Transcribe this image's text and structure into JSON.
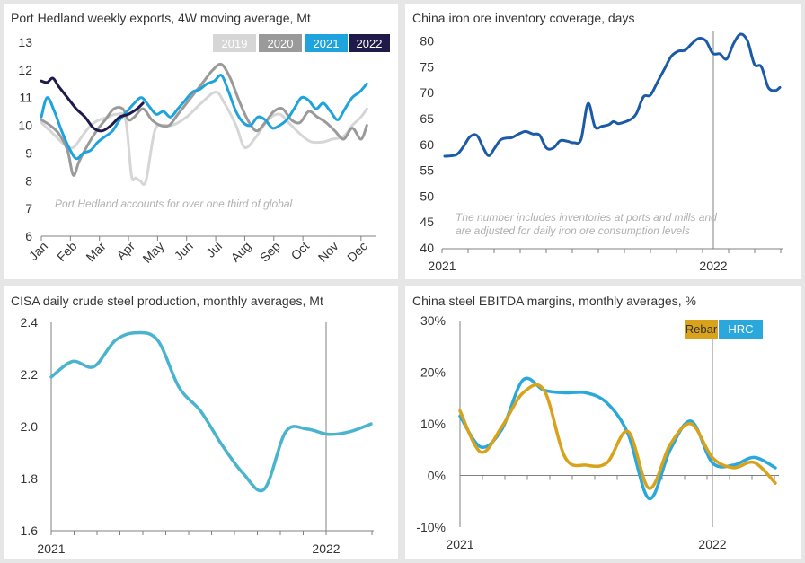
{
  "colors": {
    "y2019": "#d6d6d6",
    "y2020": "#9a9a9a",
    "y2021": "#1ea3dc",
    "y2022": "#1e1a4a",
    "inventory": "#1a5aa6",
    "steel": "#4ab4cf",
    "rebar": "#d9a21b",
    "hrc": "#2aa8dc",
    "axis": "#808080",
    "note": "#b0b0b0"
  },
  "chart_data": [
    {
      "type": "line",
      "title": "Port Hedland weekly exports, 4W moving average, Mt",
      "ylim": [
        6,
        13
      ],
      "yticks": [
        "13",
        "12",
        "11",
        "10",
        "9",
        "8",
        "7",
        "6"
      ],
      "xticklabels": [
        "Jan",
        "Feb",
        "Mar",
        "Apr",
        "May",
        "Jun",
        "Jul",
        "Aug",
        "Sep",
        "Oct",
        "Nov",
        "Dec"
      ],
      "legend": [
        "2019",
        "2020",
        "2021",
        "2022"
      ],
      "annotation": "Port Hedland accounts for over one third of global",
      "series": [
        {
          "name": "2019",
          "x": [
            0,
            0.2,
            0.5,
            0.8,
            1.1,
            1.4,
            1.7,
            2.0,
            2.3,
            2.6,
            2.9,
            3.1,
            3.25,
            3.4,
            3.6,
            3.9,
            4.2,
            4.5,
            5.0,
            5.5,
            6.0,
            6.3,
            6.7,
            7.0,
            7.4,
            7.8,
            8.2,
            8.6,
            9.0,
            9.3,
            9.7,
            10.0,
            10.4,
            10.7,
            11.0,
            11.2
          ],
          "y": [
            10.1,
            9.9,
            9.6,
            9.3,
            9.2,
            9.6,
            10.0,
            10.2,
            10.3,
            10.4,
            10.2,
            8.2,
            8.1,
            8.0,
            8.0,
            9.8,
            10.0,
            10.0,
            10.3,
            10.8,
            11.2,
            10.8,
            10.0,
            9.2,
            9.6,
            10.2,
            10.4,
            10.0,
            9.6,
            9.4,
            9.4,
            9.5,
            9.6,
            10.0,
            10.3,
            10.6
          ]
        },
        {
          "name": "2020",
          "x": [
            0,
            0.3,
            0.6,
            0.9,
            1.1,
            1.3,
            1.6,
            1.9,
            2.2,
            2.5,
            2.8,
            3.0,
            3.2,
            3.5,
            3.8,
            4.1,
            4.4,
            4.7,
            5.0,
            5.3,
            5.6,
            5.9,
            6.2,
            6.5,
            6.8,
            7.1,
            7.4,
            7.7,
            8.0,
            8.3,
            8.6,
            8.9,
            9.2,
            9.5,
            9.8,
            10.1,
            10.4,
            10.7,
            11.0,
            11.2
          ],
          "y": [
            10.2,
            10.0,
            9.7,
            9.1,
            8.2,
            8.7,
            9.3,
            9.8,
            10.2,
            10.6,
            10.6,
            10.2,
            10.3,
            10.6,
            10.2,
            10.0,
            10.0,
            10.4,
            10.8,
            11.2,
            11.6,
            12.0,
            12.2,
            11.7,
            10.9,
            10.2,
            9.8,
            10.1,
            10.5,
            10.6,
            10.2,
            10.1,
            10.5,
            10.3,
            10.1,
            9.8,
            9.5,
            9.9,
            9.5,
            10.0
          ]
        },
        {
          "name": "2021",
          "x": [
            0,
            0.2,
            0.45,
            0.7,
            0.95,
            1.2,
            1.45,
            1.7,
            1.95,
            2.2,
            2.45,
            2.7,
            2.95,
            3.2,
            3.45,
            3.7,
            3.95,
            4.2,
            4.45,
            4.7,
            4.95,
            5.2,
            5.45,
            5.7,
            5.95,
            6.2,
            6.45,
            6.7,
            6.95,
            7.2,
            7.45,
            7.7,
            7.95,
            8.2,
            8.45,
            8.7,
            8.95,
            9.2,
            9.45,
            9.7,
            9.95,
            10.2,
            10.45,
            10.7,
            10.95,
            11.2
          ],
          "y": [
            10.3,
            11.0,
            10.5,
            9.8,
            9.2,
            8.8,
            9.0,
            9.1,
            9.4,
            9.6,
            9.8,
            10.2,
            10.5,
            10.8,
            11.0,
            10.7,
            10.4,
            10.5,
            10.3,
            10.6,
            10.9,
            11.2,
            11.3,
            11.5,
            11.6,
            11.8,
            11.2,
            10.5,
            10.1,
            10.0,
            10.3,
            10.2,
            9.9,
            10.0,
            10.2,
            10.6,
            11.0,
            10.9,
            10.6,
            10.8,
            10.5,
            10.2,
            10.6,
            11.0,
            11.2,
            11.5
          ]
        },
        {
          "name": "2022",
          "x": [
            0,
            0.2,
            0.4,
            0.6,
            0.9,
            1.2,
            1.5,
            1.8,
            2.1,
            2.4,
            2.7,
            3.0,
            3.3,
            3.5
          ],
          "y": [
            11.6,
            11.55,
            11.7,
            11.4,
            11.0,
            10.6,
            10.3,
            9.9,
            9.8,
            10.0,
            10.3,
            10.4,
            10.6,
            10.8
          ]
        }
      ]
    },
    {
      "type": "line",
      "title": "China iron ore inventory coverage, days",
      "ylim": [
        40,
        82
      ],
      "yticks": [
        "80",
        "75",
        "70",
        "65",
        "60",
        "55",
        "50",
        "45",
        "40"
      ],
      "xticklabels": [
        "2021",
        "2022"
      ],
      "annotation": [
        "The number includes inventories at ports and mills and",
        "are adjusted for daily iron ore consumption levels"
      ],
      "series": [
        {
          "name": "Inventory coverage",
          "x": [
            0,
            1,
            1.6,
            2.2,
            2.8,
            3.3,
            3.8,
            4.3,
            4.8,
            5.3,
            5.8,
            6.4,
            7.0,
            7.6,
            8.2,
            8.8,
            9.4,
            10.0,
            10.6,
            11.2,
            11.8,
            12.4,
            13.0,
            13.6,
            14.2,
            14.6,
            15.0,
            15.4,
            15.8,
            16.2,
            16.6,
            17.2,
            17.8,
            18.4,
            19.0,
            19.6,
            20.2,
            20.8,
            21.4,
            22.0,
            22.6,
            23.2,
            23.8,
            24.4,
            25.0,
            25.6,
            26.2,
            26.8,
            27.4,
            28.0,
            28.6,
            29.0
          ],
          "y": [
            57.7,
            58.0,
            59.5,
            61.5,
            61.7,
            59.5,
            57.8,
            59.2,
            60.8,
            61.2,
            61.3,
            62.0,
            62.5,
            62.0,
            61.8,
            59.3,
            59.3,
            60.7,
            60.6,
            60.3,
            61.0,
            67.9,
            63.4,
            63.5,
            63.8,
            64.4,
            64.0,
            64.2,
            64.5,
            65.0,
            66.0,
            69.2,
            69.5,
            72.0,
            74.5,
            77.0,
            78.0,
            78.2,
            79.5,
            80.5,
            80.0,
            77.6,
            77.5,
            76.5,
            79.5,
            81.3,
            80.0,
            75.5,
            75.0,
            71.0,
            70.4,
            71.0
          ]
        }
      ]
    },
    {
      "type": "line",
      "title": "CISA daily crude steel production, monthly averages, Mt",
      "ylim": [
        1.6,
        2.4
      ],
      "yticks": [
        "2.4",
        "2.2",
        "2.0",
        "1.8",
        "1.6"
      ],
      "xticklabels": [
        "2021",
        "2022"
      ],
      "series": [
        {
          "name": "Crude steel production",
          "x": [
            0,
            1,
            2,
            3,
            4,
            5,
            6,
            7,
            8,
            9,
            10,
            11,
            12,
            13,
            14,
            15
          ],
          "y": [
            2.19,
            2.25,
            2.23,
            2.33,
            2.36,
            2.33,
            2.15,
            2.06,
            1.93,
            1.82,
            1.76,
            1.98,
            1.99,
            1.97,
            1.98,
            2.01
          ]
        }
      ]
    },
    {
      "type": "line",
      "title": "China steel EBITDA margins, monthly averages, %",
      "ylim": [
        -10,
        30
      ],
      "yticks": [
        "30%",
        "20%",
        "10%",
        "0%",
        "-10%"
      ],
      "xticklabels": [
        "2021",
        "2022"
      ],
      "legend": [
        "Rebar",
        "HRC"
      ],
      "series": [
        {
          "name": "Rebar",
          "x": [
            0,
            1,
            2,
            3,
            4,
            5,
            6,
            7,
            8,
            9,
            10,
            11,
            12,
            13,
            14,
            15
          ],
          "y": [
            12.5,
            4.5,
            9.5,
            16.0,
            16.5,
            3.5,
            2.0,
            2.5,
            8.5,
            -2.5,
            6.0,
            10.0,
            3.5,
            1.5,
            2.5,
            -1.5
          ]
        },
        {
          "name": "HRC",
          "x": [
            0,
            1,
            2,
            3,
            4,
            5,
            6,
            7,
            8,
            9,
            10,
            11,
            12,
            13,
            14,
            15
          ],
          "y": [
            11.5,
            5.5,
            9.0,
            18.5,
            16.5,
            16.0,
            16.0,
            14.0,
            8.0,
            -4.5,
            5.0,
            10.5,
            2.5,
            2.0,
            3.5,
            1.5
          ]
        }
      ]
    }
  ]
}
